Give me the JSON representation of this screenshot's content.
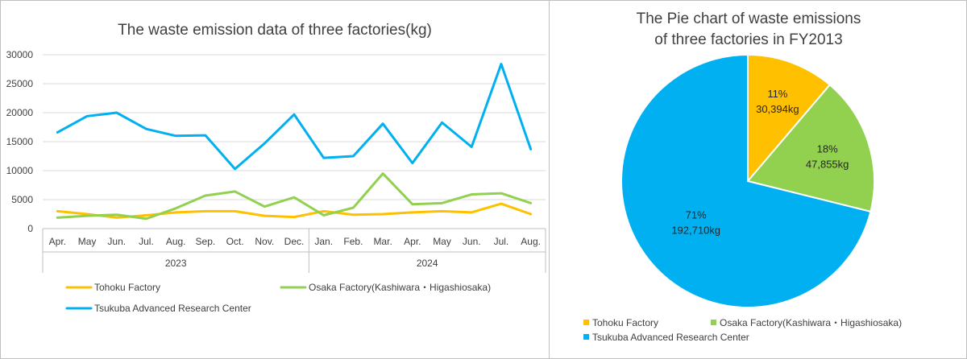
{
  "chart_data": [
    {
      "type": "line",
      "title": "The waste emission data of three factories(kg)",
      "ylim": [
        0,
        30000
      ],
      "yticks": [
        "30000",
        "25000",
        "20000",
        "15000",
        "10000",
        "5000",
        "0"
      ],
      "ytick_values": [
        30000,
        25000,
        20000,
        15000,
        10000,
        5000,
        0
      ],
      "categories": [
        "Apr.",
        "May",
        "Jun.",
        "Jul.",
        "Aug.",
        "Sep.",
        "Oct.",
        "Nov.",
        "Dec.",
        "Jan.",
        "Feb.",
        "Mar.",
        "Apr.",
        "May",
        "Jun.",
        "Jul.",
        "Aug."
      ],
      "year_groups": [
        {
          "label": "2023",
          "count": 9
        },
        {
          "label": "2024",
          "count": 8
        }
      ],
      "grid": true,
      "legend_position": "bottom",
      "series": [
        {
          "name": "Tohoku Factory",
          "color": "#FFC000",
          "values": [
            3000,
            2500,
            1900,
            2300,
            2800,
            3000,
            3000,
            2200,
            2000,
            3000,
            2400,
            2500,
            2800,
            3000,
            2800,
            4300,
            2500
          ]
        },
        {
          "name": "Osaka Factory(Kashiwara・Higashiosaka)",
          "color": "#92D050",
          "values": [
            1900,
            2200,
            2400,
            1700,
            3500,
            5700,
            6400,
            3800,
            5400,
            2300,
            3600,
            9500,
            4200,
            4400,
            5900,
            6100,
            4400
          ]
        },
        {
          "name": "Tsukuba Advanced Research Center",
          "color": "#00B0F0",
          "values": [
            16600,
            19400,
            20000,
            17200,
            16000,
            16100,
            10300,
            14700,
            19700,
            12200,
            12500,
            18100,
            11300,
            18300,
            14100,
            28400,
            13700
          ]
        }
      ]
    },
    {
      "type": "pie",
      "title": [
        "The Pie chart of waste emissions",
        "of three factories in FY2013"
      ],
      "legend_position": "bottom",
      "slices": [
        {
          "name": "Tohoku Factory",
          "value": 30394,
          "percent_label": "11%",
          "value_label": "30,394kg",
          "color": "#FFC000"
        },
        {
          "name": "Osaka Factory(Kashiwara・Higashiosaka)",
          "value": 47855,
          "percent_label": "18%",
          "value_label": "47,855kg",
          "color": "#92D050"
        },
        {
          "name": "Tsukuba Advanced Research Center",
          "value": 192710,
          "percent_label": "71%",
          "value_label": "192,710kg",
          "color": "#00B0F0"
        }
      ]
    }
  ]
}
